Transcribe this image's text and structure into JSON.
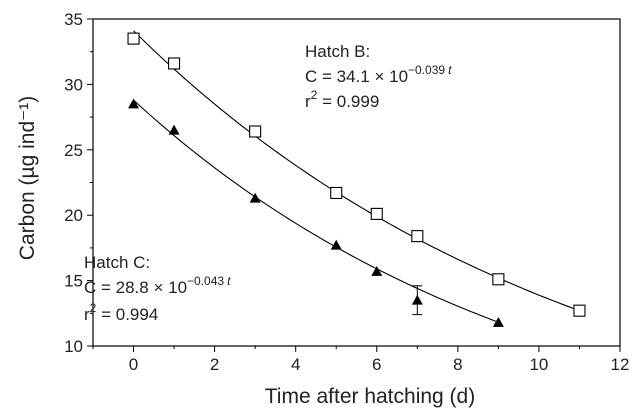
{
  "chart_data": {
    "type": "scatter",
    "xlabel": "Time after hatching (d)",
    "ylabel": "Carbon (µg ind⁻¹)",
    "xlim": [
      -1,
      12
    ],
    "ylim": [
      10,
      35
    ],
    "xticks": [
      0,
      2,
      4,
      6,
      8,
      10,
      12
    ],
    "yticks": [
      10,
      15,
      20,
      25,
      30,
      35
    ],
    "grid": false,
    "series": [
      {
        "name": "Hatch B",
        "marker": "open-square",
        "x": [
          0,
          1,
          3,
          5,
          6,
          7,
          9,
          11
        ],
        "y": [
          33.5,
          31.6,
          26.4,
          21.7,
          20.1,
          18.4,
          15.1,
          12.7
        ],
        "fit": {
          "a": 34.1,
          "b": 0.039
        }
      },
      {
        "name": "Hatch C",
        "marker": "filled-triangle",
        "x": [
          0,
          1,
          3,
          5,
          6,
          7,
          9
        ],
        "y": [
          28.5,
          26.5,
          21.3,
          17.7,
          15.7,
          13.5,
          11.8
        ],
        "error": [
          0,
          0,
          0,
          0,
          0,
          1.1,
          0
        ],
        "fit": {
          "a": 28.8,
          "b": 0.043
        }
      }
    ],
    "annotations": [
      {
        "id": "hatch-b",
        "title": "Hatch B:",
        "eq_prefix": "C = 34.1 × 10",
        "eq_exp": "−0.039",
        "eq_var": "t",
        "r2_prefix": "r",
        "r2_sup": "2",
        "r2_value": " = 0.999"
      },
      {
        "id": "hatch-c",
        "title": "Hatch C:",
        "eq_prefix": "C = 28.8 × 10",
        "eq_exp": "−0.043",
        "eq_var": "t",
        "r2_prefix": "r",
        "r2_sup": "2",
        "r2_value": " = 0.994"
      }
    ]
  }
}
